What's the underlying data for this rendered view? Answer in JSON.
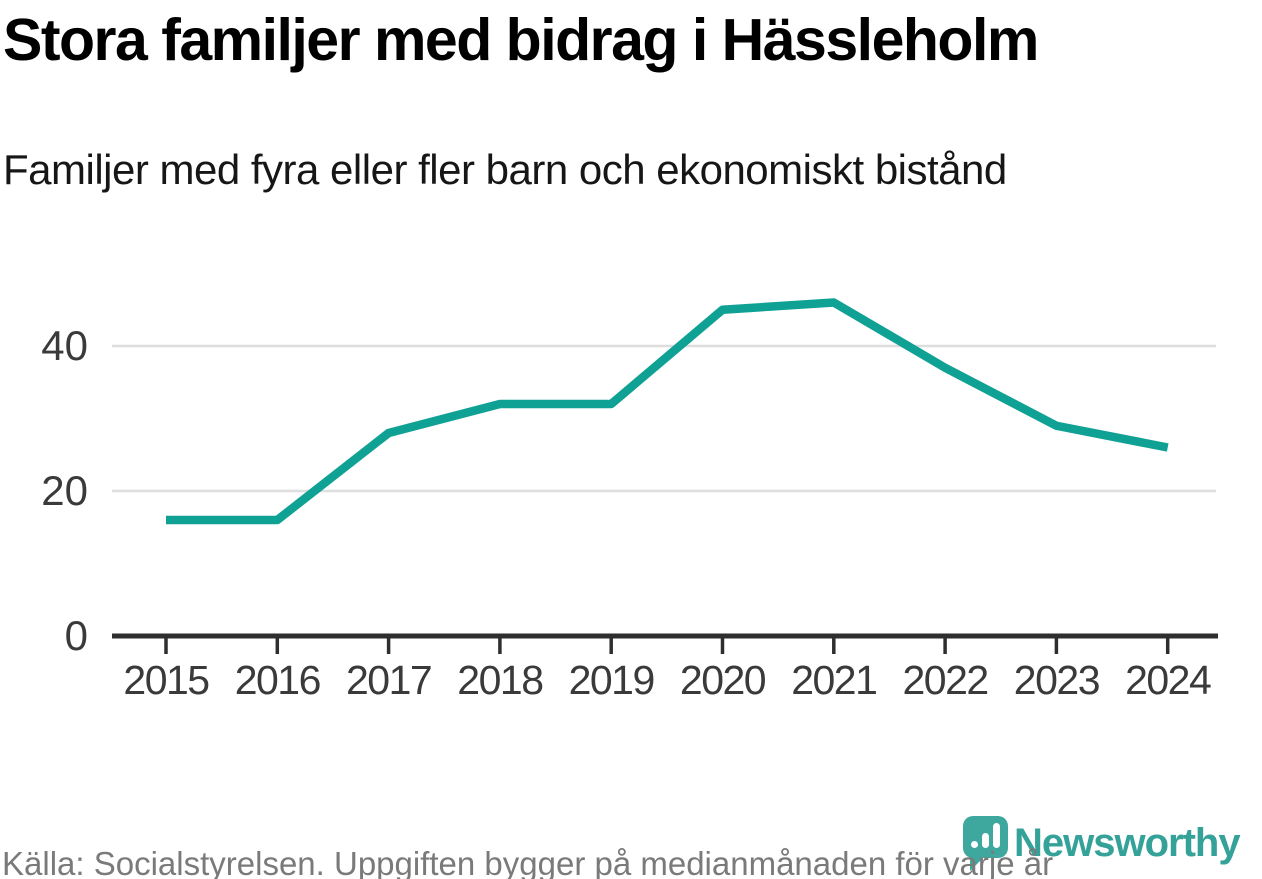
{
  "header": {
    "title": "Stora familjer med bidrag i Hässleholm",
    "subtitle": "Familjer med fyra eller fler barn och ekonomiskt bistånd"
  },
  "footer": {
    "source": "Källa: Socialstyrelsen. Uppgiften bygger på medianmånaden för varje år",
    "brand": "Newsworthy"
  },
  "colors": {
    "line": "#10a195",
    "grid": "#dedede",
    "axis": "#2e2e2e",
    "tick_label": "#3a3a3a",
    "source_text": "#7a7a7a",
    "brand_teal": "#3ea89e",
    "title_text": "#000000"
  },
  "chart_data": {
    "type": "line",
    "title": "Stora familjer med bidrag i Hässleholm",
    "subtitle": "Familjer med fyra eller fler barn och ekonomiskt bistånd",
    "series_name": "Familjer med fyra eller fler barn och ekonomiskt bistånd",
    "x": [
      "2015",
      "2016",
      "2017",
      "2018",
      "2019",
      "2020",
      "2021",
      "2022",
      "2023",
      "2024"
    ],
    "values": [
      16,
      16,
      28,
      32,
      32,
      45,
      46,
      37,
      29,
      26
    ],
    "yticks": [
      0,
      20,
      40
    ],
    "ylim": [
      0,
      50
    ],
    "xlabel": "",
    "ylabel": "",
    "grid": "horizontal",
    "legend": "none",
    "line_color": "#10a195",
    "source": "Källa: Socialstyrelsen. Uppgiften bygger på medianmånaden för varje år"
  }
}
